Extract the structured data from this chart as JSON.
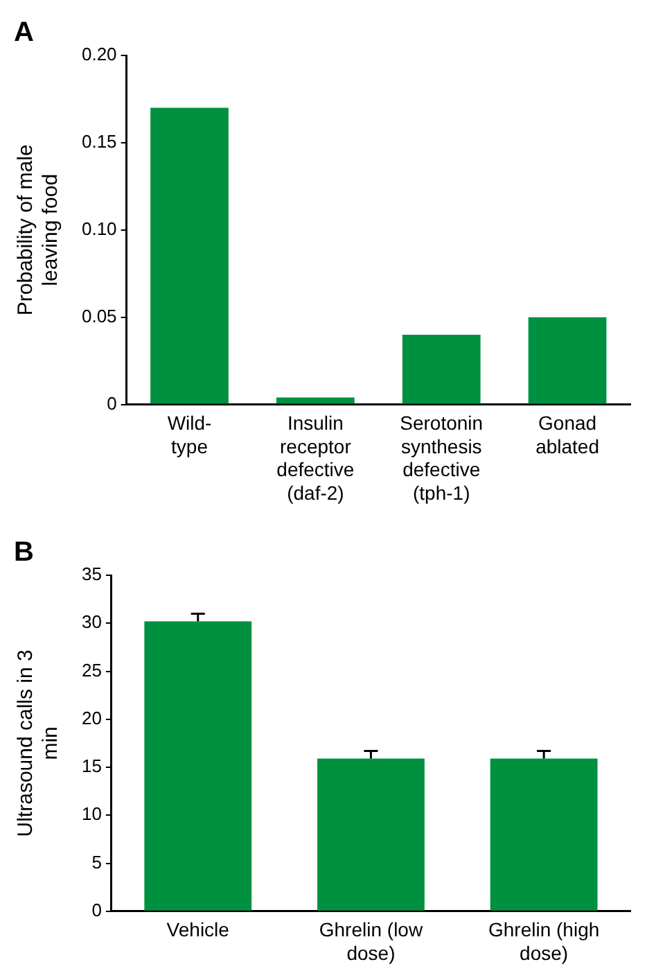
{
  "chart_data": [
    {
      "type": "bar",
      "title": "A",
      "ylabel": "Probability of male leaving food",
      "categories": [
        "Wild-type",
        "Insulin receptor defective (daf-2)",
        "Serotonin synthesis defective (tph-1)",
        "Gonad ablated"
      ],
      "values": [
        0.17,
        0.004,
        0.04,
        0.05
      ],
      "color": "#009140",
      "ylim": [
        0,
        0.2
      ],
      "yticks": [
        0,
        {
          "value": 0.05,
          "label": "0.05"
        },
        {
          "value": 0.1,
          "label": "0.10"
        },
        {
          "value": 0.15,
          "label": "0.15"
        },
        {
          "value": 0.2,
          "label": "0.20"
        }
      ],
      "grid": false,
      "legend": false
    },
    {
      "type": "bar",
      "title": "B",
      "ylabel": "Ultrasound calls in 3 min",
      "categories": [
        "Vehicle",
        "Ghrelin (low dose)",
        "Ghrelin (high dose)"
      ],
      "values": [
        30.2,
        15.9,
        15.9
      ],
      "errors": [
        0.8,
        0.8,
        0.8
      ],
      "color": "#009140",
      "ylim": [
        0,
        35
      ],
      "yticks": [
        0,
        5,
        10,
        15,
        20,
        25,
        30,
        35
      ],
      "grid": false,
      "legend": false
    }
  ]
}
